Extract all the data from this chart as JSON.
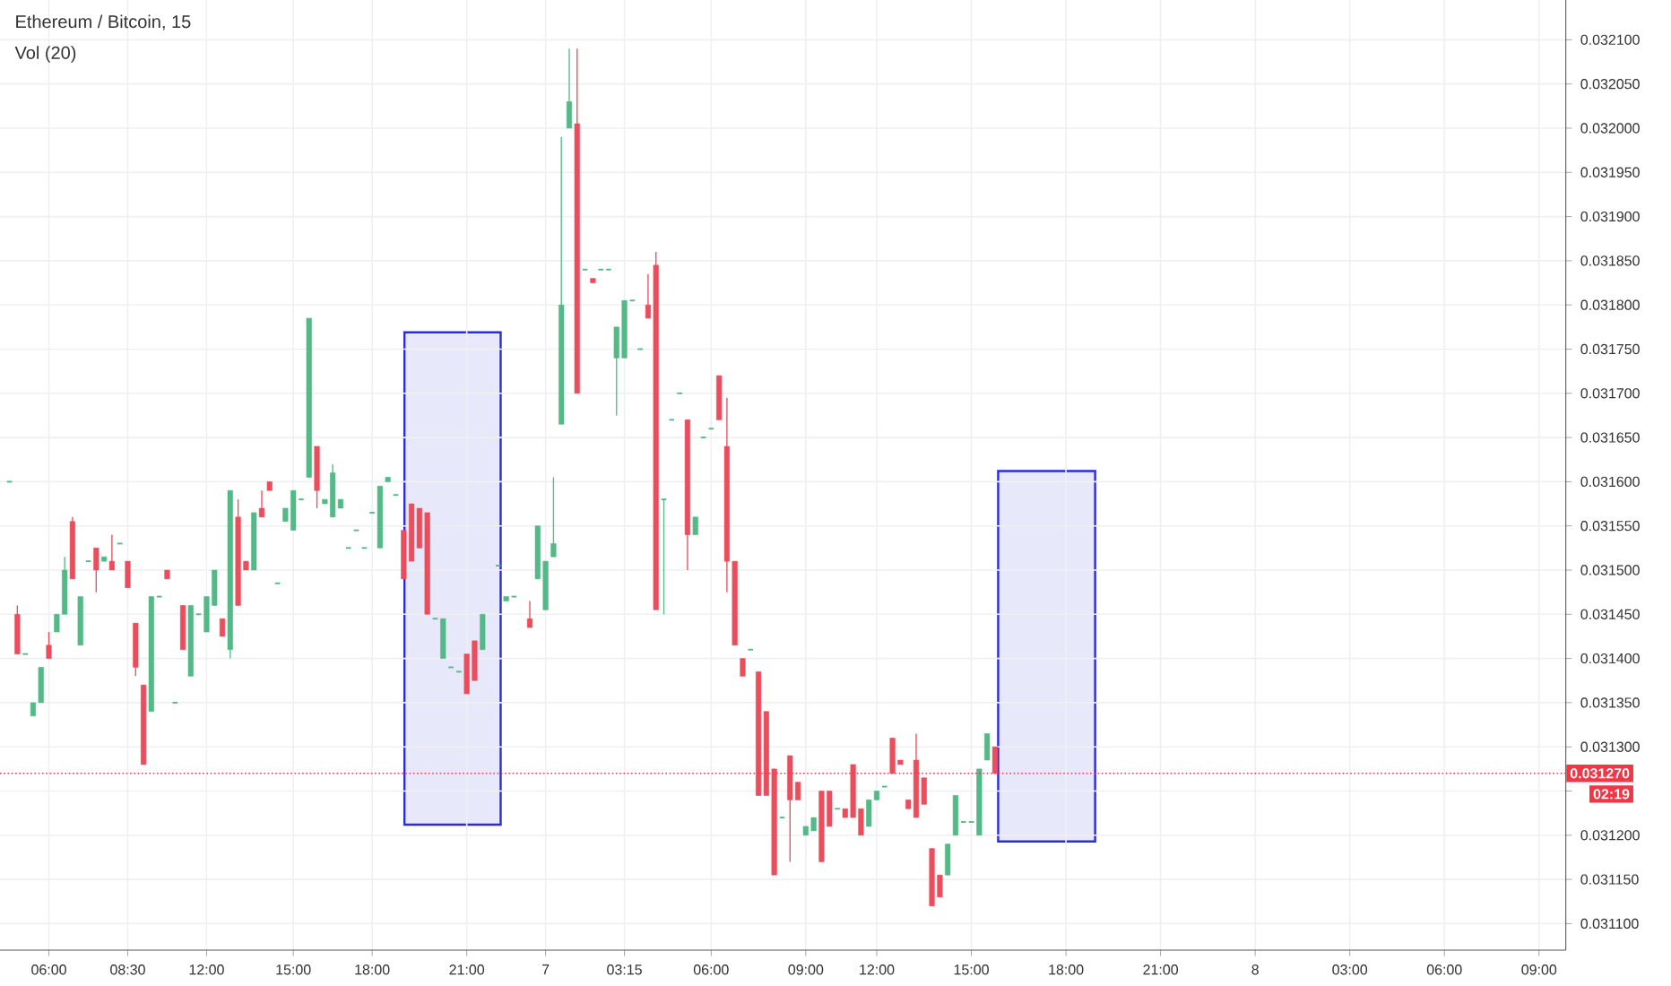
{
  "chart_data": {
    "type": "candlestick",
    "title": "Ethereum / Bitcoin, 15",
    "annotations": [
      "Vol (20)",
      "02:19"
    ],
    "categories": [
      null,
      null,
      null,
      null,
      null,
      "06:00",
      null,
      null,
      null,
      null,
      null,
      null,
      null,
      null,
      null,
      "08:30",
      null,
      null,
      null,
      null,
      null,
      null,
      null,
      null,
      null,
      "12:00",
      null,
      null,
      null,
      null,
      null,
      null,
      null,
      null,
      null,
      null,
      "15:00",
      null,
      null,
      null,
      null,
      null,
      null,
      null,
      null,
      null,
      "18:00",
      null,
      null,
      null,
      null,
      null,
      null,
      null,
      null,
      null,
      null,
      null,
      "21:00",
      null,
      null,
      null,
      null,
      null,
      null,
      null,
      null,
      null,
      "7",
      null,
      null,
      null,
      null,
      null,
      null,
      null,
      null,
      null,
      "03:15",
      null,
      null,
      null,
      null,
      null,
      null,
      null,
      null,
      null,
      null,
      "06:00",
      null,
      null,
      null,
      null,
      null,
      null,
      null,
      null,
      null,
      null,
      null,
      "09:00",
      null,
      null,
      null,
      null,
      null,
      null,
      null,
      null,
      "12:00",
      null,
      null,
      null,
      null,
      null,
      null,
      null,
      null,
      null,
      null,
      null,
      "15:00",
      null,
      null,
      null,
      null,
      null,
      null,
      null,
      null,
      null,
      null,
      null,
      "18:00",
      null,
      null,
      null,
      null,
      null,
      null,
      null,
      null,
      null,
      null,
      null,
      "21:00",
      null,
      null,
      null,
      null,
      null,
      null,
      null,
      null,
      null,
      null,
      null,
      "8",
      null,
      null,
      null,
      null,
      null,
      null,
      null,
      null,
      null,
      null,
      null,
      "03:00",
      null,
      null,
      null,
      null,
      null,
      null,
      null,
      null,
      null,
      null,
      null,
      "06:00",
      null,
      null,
      null,
      null,
      null,
      null,
      null,
      null,
      null,
      null,
      null,
      "09:00"
    ],
    "series": [
      {
        "color": "#53b987",
        "ohlc": [
          [
            0.0316,
            0.0316,
            0.0316,
            0.0316
          ],
          null,
          [
            0.031405,
            0.031405,
            0.031405,
            0.031405
          ],
          [
            0.031335,
            0.03135,
            0.031335,
            0.03135
          ],
          [
            0.03135,
            0.03139,
            0.03135,
            0.03139
          ],
          null,
          [
            0.03143,
            0.03145,
            0.03143,
            0.03145
          ],
          [
            0.03145,
            0.031515,
            0.03145,
            0.0315
          ],
          null,
          [
            0.031415,
            0.03147,
            0.031415,
            0.03147
          ],
          [
            0.03151,
            0.03151,
            0.03151,
            0.03151
          ],
          null,
          [
            0.03151,
            0.031515,
            0.03151,
            0.031515
          ],
          null,
          [
            0.03153,
            0.03153,
            0.03153,
            0.03153
          ],
          null,
          null,
          null,
          [
            0.03134,
            0.03147,
            0.03134,
            0.03147
          ],
          [
            0.03147,
            0.03147,
            0.03147,
            0.03147
          ],
          null,
          [
            0.03135,
            0.03135,
            0.03135,
            0.03135
          ],
          null,
          [
            0.03138,
            0.03146,
            0.03138,
            0.03146
          ],
          [
            0.03145,
            0.03145,
            0.03145,
            0.03145
          ],
          [
            0.03143,
            0.03147,
            0.03143,
            0.03147
          ],
          [
            0.03146,
            0.0315,
            0.03146,
            0.0315
          ],
          null,
          [
            0.03141,
            0.03159,
            0.0314,
            0.03159
          ],
          null,
          null,
          [
            0.0315,
            0.031565,
            0.0315,
            0.031565
          ],
          null,
          null,
          [
            0.031485,
            0.031485,
            0.031485,
            0.031485
          ],
          [
            0.031555,
            0.03157,
            0.031555,
            0.03157
          ],
          [
            0.031545,
            0.03159,
            0.031545,
            0.03159
          ],
          [
            0.03158,
            0.03158,
            0.03158,
            0.03158
          ],
          [
            0.031605,
            0.031785,
            0.031605,
            0.031785
          ],
          null,
          [
            0.031575,
            0.03158,
            0.031575,
            0.03158
          ],
          [
            0.03156,
            0.03162,
            0.03156,
            0.03161
          ],
          [
            0.03157,
            0.03158,
            0.03157,
            0.03158
          ],
          [
            0.031525,
            0.031525,
            0.031525,
            0.031525
          ],
          [
            0.031545,
            0.031545,
            0.031545,
            0.031545
          ],
          [
            0.031525,
            0.031525,
            0.031525,
            0.031525
          ],
          [
            0.031565,
            0.031565,
            0.031565,
            0.031565
          ],
          [
            0.031525,
            0.031595,
            0.031525,
            0.031595
          ],
          [
            0.0316,
            0.031605,
            0.0316,
            0.031605
          ],
          [
            0.031585,
            0.031585,
            0.031585,
            0.031585
          ],
          null,
          null,
          null,
          null,
          [
            0.031445,
            0.031445,
            0.031445,
            0.031445
          ],
          [
            0.0314,
            0.031445,
            0.0314,
            0.031445
          ],
          [
            0.03139,
            0.03139,
            0.03139,
            0.03139
          ],
          [
            0.031385,
            0.031385,
            0.031385,
            0.031385
          ],
          null,
          null,
          [
            0.03141,
            0.03145,
            0.03141,
            0.03145
          ],
          null,
          [
            0.031505,
            0.031505,
            0.031505,
            0.031505
          ],
          [
            0.031465,
            0.03147,
            0.031465,
            0.03147
          ],
          [
            0.03147,
            0.03147,
            0.03147,
            0.03147
          ],
          null,
          null,
          [
            0.03149,
            0.03155,
            0.03149,
            0.03155
          ],
          [
            0.031455,
            0.03151,
            0.031455,
            0.03151
          ],
          [
            0.031515,
            0.031605,
            0.031515,
            0.03153
          ],
          [
            0.031665,
            0.03199,
            0.031665,
            0.0318
          ],
          [
            0.032,
            0.03209,
            0.032,
            0.03203
          ],
          null,
          [
            0.03184,
            0.03184,
            0.03184,
            0.03184
          ],
          null,
          [
            0.03184,
            0.03184,
            0.03184,
            0.03184
          ],
          [
            0.03184,
            0.03184,
            0.03184,
            0.03184
          ],
          [
            0.03174,
            0.031775,
            0.031675,
            0.031775
          ],
          [
            0.03174,
            0.031805,
            0.03174,
            0.031805
          ],
          [
            0.031805,
            0.031805,
            0.031805,
            0.031805
          ],
          [
            0.03175,
            0.03175,
            0.03175,
            0.03175
          ],
          null,
          null,
          [
            0.03158,
            0.03158,
            0.03145,
            0.03158
          ],
          [
            0.03167,
            0.03167,
            0.03167,
            0.03167
          ],
          [
            0.0317,
            0.0317,
            0.0317,
            0.0317
          ],
          null,
          [
            0.03154,
            0.03156,
            0.03154,
            0.03156
          ],
          [
            0.03165,
            0.03165,
            0.03165,
            0.03165
          ],
          [
            0.03166,
            0.03166,
            0.03166,
            0.03166
          ],
          null,
          null,
          null,
          null,
          [
            0.03141,
            0.03141,
            0.03141,
            0.03141
          ],
          null,
          null,
          null,
          [
            0.03122,
            0.03122,
            0.03122,
            0.03122
          ],
          null,
          null,
          [
            0.0312,
            0.03121,
            0.0312,
            0.03121
          ],
          [
            0.031205,
            0.03122,
            0.031205,
            0.03122
          ],
          null,
          null,
          [
            0.03123,
            0.03123,
            0.03123,
            0.03123
          ],
          null,
          null,
          null,
          [
            0.03121,
            0.03124,
            0.03121,
            0.03124
          ],
          [
            0.03124,
            0.03125,
            0.03124,
            0.03125
          ],
          [
            0.031255,
            0.031255,
            0.031255,
            0.031255
          ],
          null,
          null,
          null,
          null,
          null,
          null,
          null,
          [
            0.031155,
            0.03119,
            0.031155,
            0.03119
          ],
          [
            0.0312,
            0.031245,
            0.0312,
            0.031245
          ],
          [
            0.031215,
            0.031215,
            0.031215,
            0.031215
          ],
          [
            0.031215,
            0.031215,
            0.031215,
            0.031215
          ],
          [
            0.0312,
            0.031275,
            0.0312,
            0.031275
          ],
          [
            0.031285,
            0.031315,
            0.031285,
            0.031315
          ],
          null,
          null,
          null,
          null,
          null,
          null,
          null,
          null,
          null,
          null,
          null,
          null,
          null,
          null,
          null,
          null,
          null,
          null,
          null,
          null,
          null,
          null,
          null,
          null,
          null,
          null,
          null,
          null,
          null,
          null,
          null,
          null,
          null,
          null,
          null,
          null,
          null,
          null,
          null,
          null,
          null,
          null,
          null,
          null,
          null,
          null,
          null,
          null,
          null,
          null,
          null,
          null,
          null,
          null,
          null,
          null,
          null,
          null,
          null,
          null,
          null,
          null,
          null,
          null,
          null,
          null,
          null,
          null,
          null,
          null
        ]
      },
      {
        "color": "#eb4d5c",
        "ohlc": [
          null,
          [
            0.03145,
            0.03146,
            0.031405,
            0.031405
          ],
          null,
          null,
          null,
          [
            0.031415,
            0.03143,
            0.0314,
            0.0314
          ],
          null,
          null,
          [
            0.031555,
            0.03156,
            0.03149,
            0.03149
          ],
          null,
          null,
          [
            0.031525,
            0.031525,
            0.031475,
            0.0315
          ],
          null,
          [
            0.03151,
            0.03154,
            0.0315,
            0.0315
          ],
          null,
          [
            0.03151,
            0.03151,
            0.03148,
            0.03148
          ],
          [
            0.03144,
            0.03144,
            0.03138,
            0.03139
          ],
          [
            0.03137,
            0.03137,
            0.03128,
            0.03128
          ],
          null,
          null,
          [
            0.0315,
            0.0315,
            0.03149,
            0.03149
          ],
          null,
          [
            0.03146,
            0.03146,
            0.03141,
            0.03141
          ],
          null,
          null,
          null,
          null,
          [
            0.031445,
            0.031445,
            0.031425,
            0.031425
          ],
          null,
          [
            0.03156,
            0.03158,
            0.03146,
            0.03146
          ],
          [
            0.03151,
            0.03151,
            0.0315,
            0.0315
          ],
          null,
          [
            0.03157,
            0.03159,
            0.03156,
            0.03156
          ],
          [
            0.0316,
            0.0316,
            0.03159,
            0.03159
          ],
          null,
          null,
          null,
          null,
          null,
          [
            0.03164,
            0.03164,
            0.03157,
            0.03159
          ],
          null,
          null,
          null,
          null,
          null,
          null,
          null,
          null,
          null,
          null,
          [
            0.031545,
            0.031545,
            0.03149,
            0.03149
          ],
          [
            0.031575,
            0.031575,
            0.03151,
            0.03151
          ],
          [
            0.03157,
            0.03157,
            0.031525,
            0.031525
          ],
          [
            0.031565,
            0.031565,
            0.03145,
            0.03145
          ],
          null,
          null,
          null,
          null,
          [
            0.031405,
            0.031405,
            0.03136,
            0.03136
          ],
          [
            0.03142,
            0.03142,
            0.031375,
            0.031375
          ],
          null,
          null,
          null,
          null,
          null,
          null,
          [
            0.031445,
            0.031465,
            0.031435,
            0.031435
          ],
          null,
          null,
          null,
          null,
          null,
          [
            0.032005,
            0.03209,
            0.0317,
            0.0317
          ],
          null,
          [
            0.03183,
            0.03183,
            0.031825,
            0.031825
          ],
          null,
          null,
          null,
          null,
          null,
          null,
          [
            0.0318,
            0.031835,
            0.031785,
            0.031785
          ],
          [
            0.031845,
            0.03186,
            0.031455,
            0.031455
          ],
          null,
          null,
          null,
          [
            0.03167,
            0.03167,
            0.0315,
            0.03154
          ],
          null,
          null,
          null,
          [
            0.03172,
            0.03172,
            0.03167,
            0.03167
          ],
          [
            0.03164,
            0.031695,
            0.031475,
            0.03151
          ],
          [
            0.03151,
            0.03151,
            0.031415,
            0.031415
          ],
          [
            0.0314,
            0.0314,
            0.03138,
            0.03138
          ],
          null,
          [
            0.031385,
            0.031385,
            0.031245,
            0.031245
          ],
          [
            0.03134,
            0.03134,
            0.031245,
            0.031245
          ],
          [
            0.031275,
            0.031275,
            0.031155,
            0.031155
          ],
          null,
          [
            0.03129,
            0.03129,
            0.03117,
            0.03124
          ],
          [
            0.03126,
            0.03126,
            0.03124,
            0.03124
          ],
          null,
          null,
          [
            0.03125,
            0.03125,
            0.03117,
            0.03117
          ],
          [
            0.03125,
            0.03125,
            0.03121,
            0.03121
          ],
          null,
          [
            0.03123,
            0.03123,
            0.03122,
            0.03122
          ],
          [
            0.03128,
            0.03128,
            0.03122,
            0.03122
          ],
          [
            0.03123,
            0.03123,
            0.0312,
            0.0312
          ],
          null,
          null,
          null,
          [
            0.03131,
            0.03131,
            0.03127,
            0.03127
          ],
          [
            0.031285,
            0.031285,
            0.03128,
            0.03128
          ],
          [
            0.03124,
            0.03124,
            0.03123,
            0.03123
          ],
          [
            0.031285,
            0.031315,
            0.03122,
            0.03122
          ],
          [
            0.031265,
            0.031265,
            0.031235,
            0.031235
          ],
          [
            0.031185,
            0.031185,
            0.03112,
            0.03112
          ],
          [
            0.031155,
            0.031155,
            0.03113,
            0.03113
          ],
          null,
          null,
          null,
          null,
          null,
          null,
          [
            0.0313,
            0.0313,
            0.03127,
            0.03127
          ],
          null,
          null,
          null,
          null,
          null,
          null,
          null,
          null,
          null,
          null,
          null,
          null,
          null,
          null,
          null,
          null,
          null,
          null,
          null,
          null,
          null,
          null,
          null,
          null,
          null,
          null,
          null,
          null,
          null,
          null,
          null,
          null,
          null,
          null,
          null,
          null,
          null,
          null,
          null,
          null,
          null,
          null,
          null,
          null,
          null,
          null,
          null,
          null,
          null,
          null,
          null,
          null,
          null,
          null,
          null,
          null,
          null,
          null,
          null,
          null,
          null,
          null,
          null,
          null,
          null,
          null,
          null,
          null,
          null
        ]
      }
    ],
    "ylim": [
      0.03107,
      0.032145
    ],
    "yticks": [
      {
        "value": 0.0311,
        "label": "0.031100"
      },
      {
        "value": 0.03115,
        "label": "0.031150"
      },
      {
        "value": 0.0312,
        "label": "0.031200"
      },
      {
        "value": 0.03125,
        "label": null
      },
      {
        "value": 0.0313,
        "label": "0.031300"
      },
      {
        "value": 0.03135,
        "label": "0.031350"
      },
      {
        "value": 0.0314,
        "label": "0.031400"
      },
      {
        "value": 0.03145,
        "label": "0.031450"
      },
      {
        "value": 0.0315,
        "label": "0.031500"
      },
      {
        "value": 0.03155,
        "label": "0.031550"
      },
      {
        "value": 0.0316,
        "label": "0.031600"
      },
      {
        "value": 0.03165,
        "label": "0.031650"
      },
      {
        "value": 0.0317,
        "label": "0.031700"
      },
      {
        "value": 0.03175,
        "label": "0.031750"
      },
      {
        "value": 0.0318,
        "label": "0.031800"
      },
      {
        "value": 0.03185,
        "label": "0.031850"
      },
      {
        "value": 0.0319,
        "label": "0.031900"
      },
      {
        "value": 0.03195,
        "label": "0.031950"
      },
      {
        "value": 0.032,
        "label": "0.032000"
      },
      {
        "value": 0.03205,
        "label": "0.032050"
      },
      {
        "value": 0.0321,
        "label": "0.032100"
      }
    ],
    "ref_lines": [
      {
        "axis": "y",
        "value": 0.03127,
        "label": "0.031270",
        "color": "#f23645",
        "line_style": "dotted"
      }
    ],
    "grid": true
  }
}
